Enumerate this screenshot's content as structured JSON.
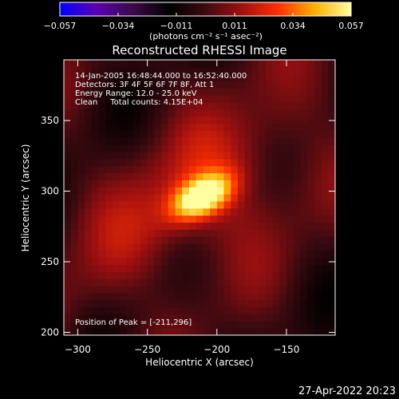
{
  "colorbar": {
    "tick_labels": [
      "-0.057",
      "-0.034",
      "-0.011",
      "0.011",
      "0.034",
      "0.057"
    ],
    "unit_label": "(photons cm⁻² s⁻¹ asec⁻²)",
    "colormap": [
      "#0000ff",
      "#5a00b4",
      "#3c0a46",
      "#000000",
      "#3c0a10",
      "#a01010",
      "#ff3000",
      "#ffb000",
      "#ffffa0"
    ],
    "range": [
      -0.057,
      0.057
    ]
  },
  "chart_data": {
    "type": "heatmap",
    "title": "Reconstructed RHESSI Image",
    "xlabel": "Heliocentric X (arcsec)",
    "ylabel": "Heliocentric Y (arcsec)",
    "xlim": [
      -310,
      -115
    ],
    "ylim": [
      198,
      393
    ],
    "xticks": [
      -300,
      -250,
      -200,
      -150
    ],
    "yticks": [
      200,
      250,
      300,
      350
    ],
    "peak": {
      "x": -211,
      "y": 296,
      "value": 0.057
    },
    "annotations": [
      "14-Jan-2005 16:48:44.000 to 16:52:40.000",
      "Detectors: 3F 4F 5F 6F 7F 8F, Att 1",
      "Energy Range: 12.0 - 25.0 keV",
      "Clean     Total counts: 4.15E+04"
    ],
    "peak_label": "Position of Peak = [-211,296]"
  },
  "footer_timestamp": "27-Apr-2022 20:23"
}
